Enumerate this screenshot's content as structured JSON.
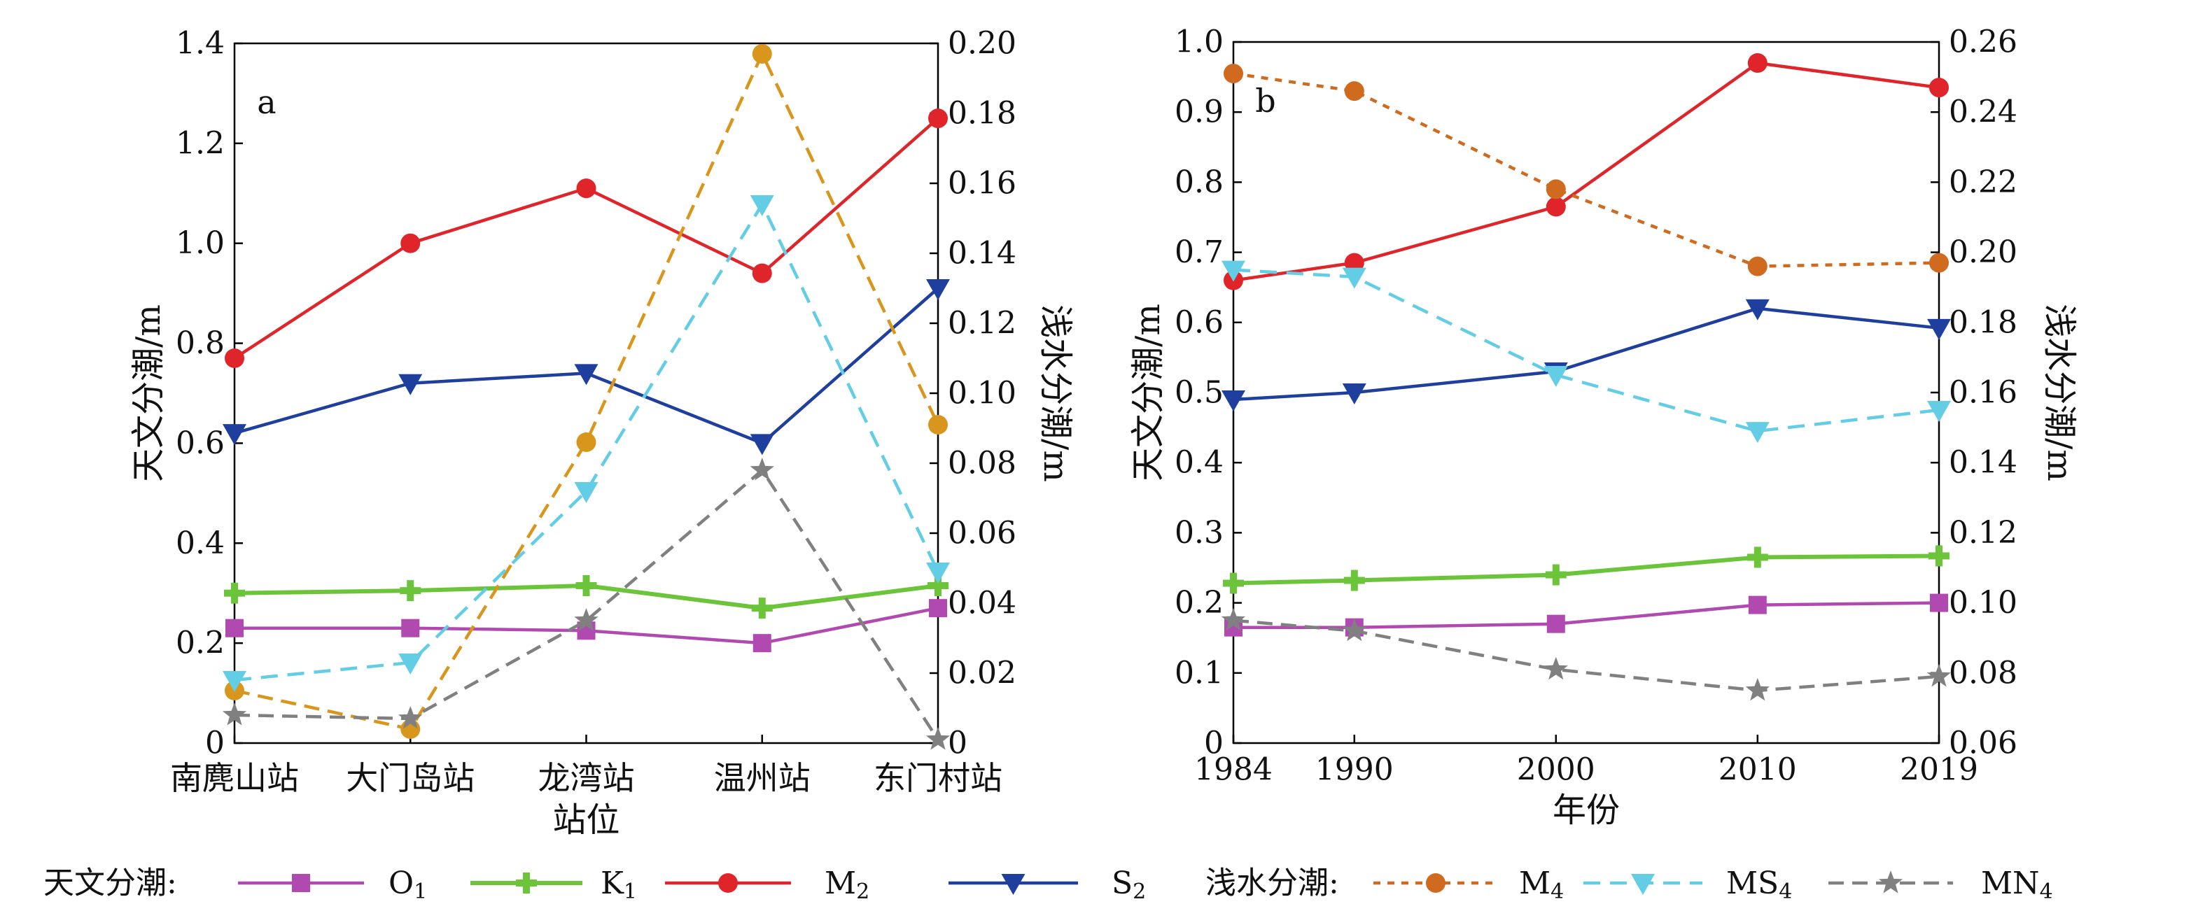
{
  "chart_data": [
    {
      "panel": "a",
      "type": "line",
      "x": [
        "南麂山站",
        "大门岛站",
        "龙湾站",
        "温州站",
        "东门村站"
      ],
      "xlabel": "站位",
      "ylabel": "天文分潮/m",
      "ylabel_right": "浅水分潮/m",
      "ylim": [
        0,
        1.4
      ],
      "yticks": [
        "0",
        "0.2",
        "0.4",
        "0.6",
        "0.8",
        "1.0",
        "1.2",
        "1.4"
      ],
      "ylim_right": [
        0,
        0.2
      ],
      "yticks_right": [
        "0",
        "0.02",
        "0.04",
        "0.06",
        "0.08",
        "0.10",
        "0.12",
        "0.14",
        "0.16",
        "0.18",
        "0.20"
      ],
      "series": [
        {
          "name": "O1",
          "axis": "left",
          "values": [
            0.23,
            0.23,
            0.225,
            0.2,
            0.27
          ]
        },
        {
          "name": "K1",
          "axis": "left",
          "values": [
            0.3,
            0.305,
            0.315,
            0.27,
            0.315
          ]
        },
        {
          "name": "M2",
          "axis": "left",
          "values": [
            0.77,
            1.0,
            1.11,
            0.94,
            1.25
          ]
        },
        {
          "name": "S2",
          "axis": "left",
          "values": [
            0.62,
            0.72,
            0.74,
            0.6,
            0.91
          ]
        },
        {
          "name": "M4",
          "axis": "right",
          "values": [
            0.015,
            0.004,
            0.086,
            0.197,
            0.091
          ]
        },
        {
          "name": "MS4",
          "axis": "right",
          "values": [
            0.018,
            0.023,
            0.072,
            0.154,
            0.049
          ]
        },
        {
          "name": "MN4",
          "axis": "right",
          "values": [
            0.008,
            0.007,
            0.035,
            0.078,
            0.001
          ]
        }
      ]
    },
    {
      "panel": "b",
      "type": "line",
      "x": [
        1984,
        1990,
        2000,
        2010,
        2019
      ],
      "xticks": [
        "1984",
        "1990",
        "2000",
        "2010",
        "2019"
      ],
      "xlabel": "年份",
      "ylabel": "天文分潮/m",
      "ylabel_right": "浅水分潮/m",
      "ylim": [
        0,
        1.0
      ],
      "yticks": [
        "0",
        "0.1",
        "0.2",
        "0.3",
        "0.4",
        "0.5",
        "0.6",
        "0.7",
        "0.8",
        "0.9",
        "1.0"
      ],
      "ylim_right": [
        0.06,
        0.26
      ],
      "yticks_right": [
        "0.06",
        "0.08",
        "0.10",
        "0.12",
        "0.14",
        "0.16",
        "0.18",
        "0.20",
        "0.22",
        "0.24",
        "0.26"
      ],
      "series": [
        {
          "name": "O1",
          "axis": "left",
          "values": [
            0.165,
            0.165,
            0.17,
            0.197,
            0.2
          ]
        },
        {
          "name": "K1",
          "axis": "left",
          "values": [
            0.228,
            0.232,
            0.24,
            0.265,
            0.267
          ]
        },
        {
          "name": "M2",
          "axis": "left",
          "values": [
            0.66,
            0.685,
            0.765,
            0.97,
            0.935
          ]
        },
        {
          "name": "S2",
          "axis": "left",
          "values": [
            0.49,
            0.5,
            0.53,
            0.62,
            0.592
          ]
        },
        {
          "name": "M4",
          "axis": "right",
          "values": [
            0.251,
            0.246,
            0.218,
            0.196,
            0.197
          ]
        },
        {
          "name": "MS4",
          "axis": "right",
          "values": [
            0.195,
            0.193,
            0.165,
            0.149,
            0.155
          ]
        },
        {
          "name": "MN4",
          "axis": "right",
          "values": [
            0.095,
            0.092,
            0.081,
            0.075,
            0.079
          ]
        }
      ]
    }
  ],
  "panel_tags": {
    "a": "a",
    "b": "b"
  },
  "legend": {
    "astro_title": "天文分潮:",
    "shallow_title": "浅水分潮:",
    "items": [
      {
        "base": "O",
        "sub": "1"
      },
      {
        "base": "K",
        "sub": "1"
      },
      {
        "base": "M",
        "sub": "2"
      },
      {
        "base": "S",
        "sub": "2"
      },
      {
        "base": "M",
        "sub": "4"
      },
      {
        "base": "MS",
        "sub": "4"
      },
      {
        "base": "MN",
        "sub": "4"
      }
    ]
  },
  "colors": {
    "O1": "#b04ab0",
    "K1": "#6cc43a",
    "M2": "#e0252a",
    "S2": "#1f3f9e",
    "M4": "#cf6a1f",
    "MS4": "#62cde4",
    "MN4": "#808080",
    "M4_panel_a": "#d9961c"
  },
  "markers": {
    "O1": "square",
    "K1": "plus",
    "M2": "circle",
    "S2": "triangle-down",
    "M4": "circle",
    "MS4": "triangle-down",
    "MN4": "star"
  }
}
